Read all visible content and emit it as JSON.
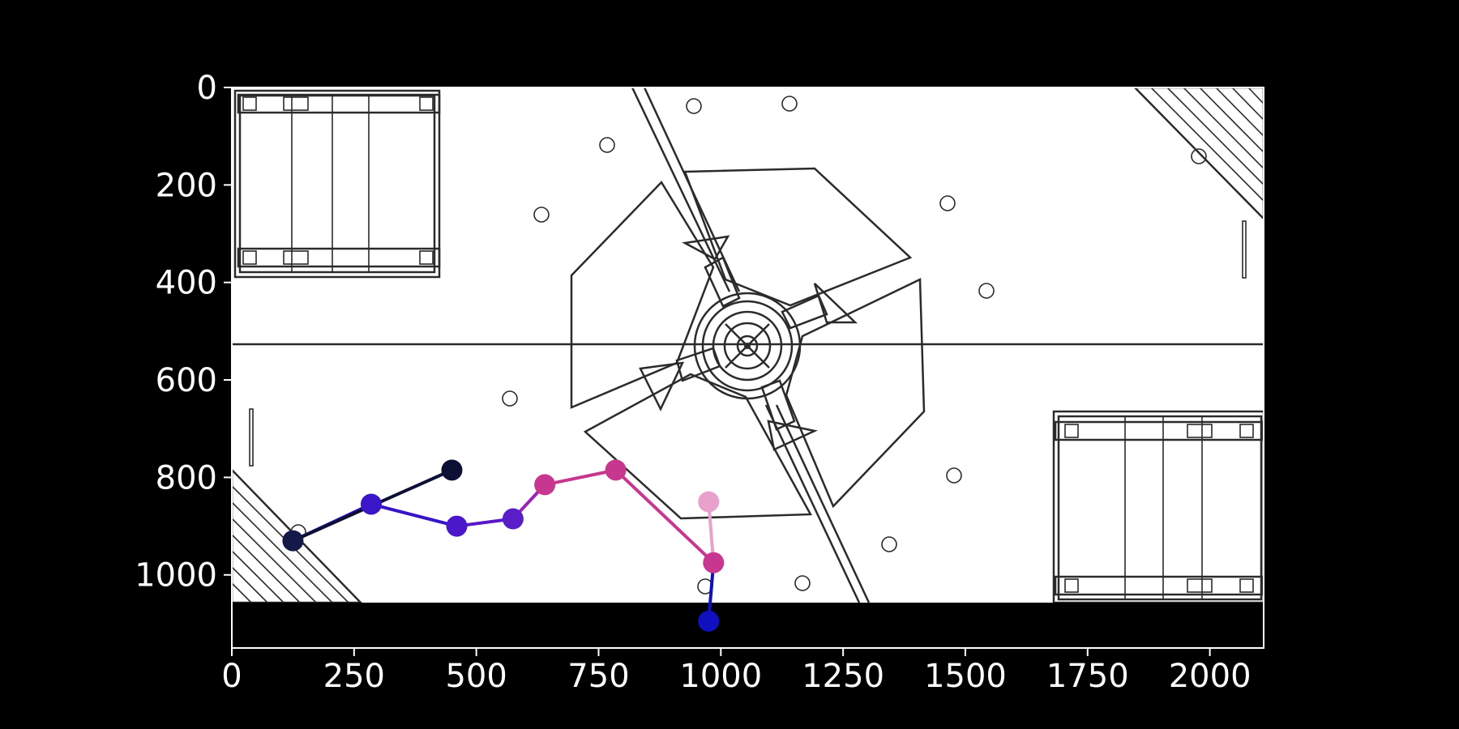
{
  "chart_data": {
    "type": "line",
    "title": "",
    "xlabel": "",
    "ylabel": "",
    "xlim": [
      0,
      2110
    ],
    "ylim": [
      1150,
      0
    ],
    "x_ticks": [
      0,
      250,
      500,
      750,
      1000,
      1250,
      1500,
      1750,
      2000
    ],
    "y_ticks": [
      0,
      200,
      400,
      600,
      800,
      1000
    ],
    "grid": false,
    "legend": "none",
    "background": "top-down field map image",
    "segments": [
      {
        "from": [
          975,
          1095
        ],
        "to": [
          985,
          975
        ],
        "color": "#1010c0"
      },
      {
        "from": [
          985,
          975
        ],
        "to": [
          785,
          785
        ],
        "color": "#c8378f"
      },
      {
        "from": [
          785,
          785
        ],
        "to": [
          640,
          815
        ],
        "color": "#c8378f"
      },
      {
        "from": [
          640,
          815
        ],
        "to": [
          575,
          885
        ],
        "color": "#9a24b8"
      },
      {
        "from": [
          575,
          885
        ],
        "to": [
          460,
          900
        ],
        "color": "#5818c8"
      },
      {
        "from": [
          460,
          900
        ],
        "to": [
          285,
          855
        ],
        "color": "#3814c8"
      },
      {
        "from": [
          285,
          855
        ],
        "to": [
          125,
          930
        ],
        "color": "#2a10b0"
      },
      {
        "from": [
          125,
          930
        ],
        "to": [
          450,
          785
        ],
        "color": "#0d1035"
      },
      {
        "from": [
          975,
          850
        ],
        "to": [
          985,
          975
        ],
        "color": "#e8a0cc"
      }
    ],
    "points": [
      {
        "x": 975,
        "y": 1095,
        "color": "#1010c0"
      },
      {
        "x": 985,
        "y": 975,
        "color": "#c8378f"
      },
      {
        "x": 785,
        "y": 785,
        "color": "#c8378f"
      },
      {
        "x": 640,
        "y": 815,
        "color": "#c8378f"
      },
      {
        "x": 575,
        "y": 885,
        "color": "#5a1ec8"
      },
      {
        "x": 460,
        "y": 900,
        "color": "#4a18c8"
      },
      {
        "x": 285,
        "y": 855,
        "color": "#3a16c8"
      },
      {
        "x": 125,
        "y": 930,
        "color": "#141a48"
      },
      {
        "x": 450,
        "y": 785,
        "color": "#0d1035"
      },
      {
        "x": 975,
        "y": 850,
        "color": "#e8a0cc"
      }
    ]
  }
}
